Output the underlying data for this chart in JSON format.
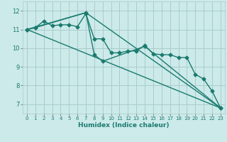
{
  "title": "",
  "xlabel": "Humidex (Indice chaleur)",
  "background_color": "#cceaea",
  "grid_color": "#aacccc",
  "line_color": "#1a7a6e",
  "xlim": [
    -0.5,
    23.5
  ],
  "ylim": [
    6.5,
    12.5
  ],
  "xticks": [
    0,
    1,
    2,
    3,
    4,
    5,
    6,
    7,
    8,
    9,
    10,
    11,
    12,
    13,
    14,
    15,
    16,
    17,
    18,
    19,
    20,
    21,
    22,
    23
  ],
  "yticks": [
    7,
    8,
    9,
    10,
    11,
    12
  ],
  "series": [
    {
      "x": [
        0,
        1,
        2,
        3,
        4,
        5,
        6,
        7,
        8,
        9,
        10,
        11,
        12,
        13,
        14,
        15,
        16,
        17,
        18,
        19,
        20,
        21,
        22,
        23
      ],
      "y": [
        11.0,
        11.1,
        11.45,
        11.2,
        11.25,
        11.25,
        11.15,
        11.85,
        10.5,
        10.5,
        9.75,
        9.75,
        9.85,
        9.85,
        10.15,
        9.7,
        9.65,
        9.65,
        9.5,
        9.5,
        8.6,
        8.35,
        7.7,
        6.8
      ],
      "marker": "D",
      "markersize": 2.5,
      "linewidth": 1.0
    },
    {
      "x": [
        0,
        1,
        7,
        8,
        9,
        14,
        23
      ],
      "y": [
        11.0,
        11.1,
        11.9,
        9.65,
        9.3,
        10.1,
        6.8
      ],
      "marker": "D",
      "markersize": 2.5,
      "linewidth": 1.0
    },
    {
      "x": [
        0,
        23
      ],
      "y": [
        11.0,
        6.8
      ],
      "marker": null,
      "markersize": 0,
      "linewidth": 1.0
    },
    {
      "x": [
        0,
        7,
        23
      ],
      "y": [
        11.0,
        11.9,
        6.8
      ],
      "marker": null,
      "markersize": 0,
      "linewidth": 1.0
    }
  ]
}
